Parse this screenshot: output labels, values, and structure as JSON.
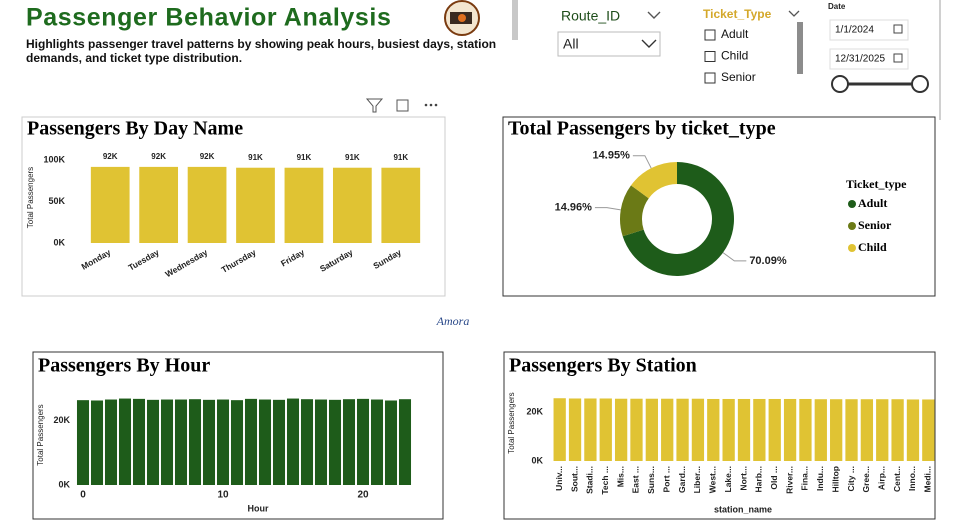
{
  "header": {
    "title": "Passenger Behavior Analysis",
    "subtitle": "Highlights passenger travel patterns by showing peak hours, busiest days, station demands, and ticket type distribution.",
    "logo_text": "Amora"
  },
  "filters": {
    "route": {
      "label": "Route_ID",
      "value": "All"
    },
    "ticket": {
      "label": "Ticket_Type",
      "options": [
        "Adult",
        "Child",
        "Senior"
      ]
    },
    "date": {
      "label": "Date",
      "start": "1/1/2024",
      "end": "12/31/2025"
    }
  },
  "chart_data": [
    {
      "type": "bar",
      "title": "Passengers By Day Name",
      "y_label": "Total Passengers",
      "categories": [
        "Monday",
        "Tuesday",
        "Wednesday",
        "Thursday",
        "Friday",
        "Saturday",
        "Sunday"
      ],
      "values": [
        92000,
        92000,
        92000,
        91000,
        91000,
        91000,
        91000
      ],
      "value_labels": [
        "92K",
        "92K",
        "92K",
        "91K",
        "91K",
        "91K",
        "91K"
      ],
      "color": "#e0c333",
      "ylim": [
        0,
        110000
      ],
      "yticks": [
        {
          "value": 0,
          "label": "0K"
        },
        {
          "value": 50000,
          "label": "50K"
        },
        {
          "value": 100000,
          "label": "100K"
        }
      ]
    },
    {
      "type": "donut",
      "title": "Total Passengers by ticket_type",
      "legend_title": "Ticket_type",
      "categories": [
        "Adult",
        "Senior",
        "Child"
      ],
      "values": [
        70.09,
        14.96,
        14.95
      ],
      "value_labels": [
        "70.09%",
        "14.96%",
        "14.95%"
      ],
      "colors": [
        "#1e5c1a",
        "#6b7a16",
        "#e0c333"
      ]
    },
    {
      "type": "bar",
      "title": "Passengers By Hour",
      "x_label": "Hour",
      "y_label": "Total Passengers",
      "x": [
        0,
        1,
        2,
        3,
        4,
        5,
        6,
        7,
        8,
        9,
        10,
        11,
        12,
        13,
        14,
        15,
        16,
        17,
        18,
        19,
        20,
        21,
        22,
        23
      ],
      "values": [
        26300,
        26200,
        26500,
        26800,
        26700,
        26400,
        26500,
        26500,
        26600,
        26400,
        26500,
        26300,
        26700,
        26500,
        26400,
        26800,
        26600,
        26500,
        26400,
        26600,
        26700,
        26500,
        26200,
        26600
      ],
      "color": "#1e5c1a",
      "xlim": [
        -0.5,
        23.5
      ],
      "xticks": [
        0,
        10,
        20
      ],
      "ylim": [
        0,
        31000
      ],
      "yticks": [
        {
          "value": 0,
          "label": "0K"
        },
        {
          "value": 20000,
          "label": "20K"
        }
      ]
    },
    {
      "type": "bar",
      "title": "Passengers By Station",
      "x_label": "station_name",
      "y_label": "Total Passengers",
      "categories": [
        "Univ...",
        "Sout...",
        "Stadi...",
        "Tech ...",
        "Mis...",
        "East ...",
        "Suns...",
        "Port ...",
        "Gard...",
        "Liber...",
        "West...",
        "Lake...",
        "Nort...",
        "Harb...",
        "Old ...",
        "River...",
        "Fina...",
        "Indu...",
        "Hilltop",
        "City ...",
        "Gree...",
        "Airp...",
        "Cent...",
        "Inno...",
        "Medi..."
      ],
      "values": [
        25600,
        25500,
        25500,
        25500,
        25400,
        25400,
        25400,
        25400,
        25400,
        25400,
        25300,
        25300,
        25300,
        25300,
        25300,
        25300,
        25300,
        25200,
        25200,
        25200,
        25200,
        25200,
        25200,
        25100,
        25100
      ],
      "color": "#e0c333",
      "ylim": [
        0,
        31000
      ],
      "yticks": [
        {
          "value": 0,
          "label": "0K"
        },
        {
          "value": 20000,
          "label": "20K"
        }
      ]
    }
  ]
}
